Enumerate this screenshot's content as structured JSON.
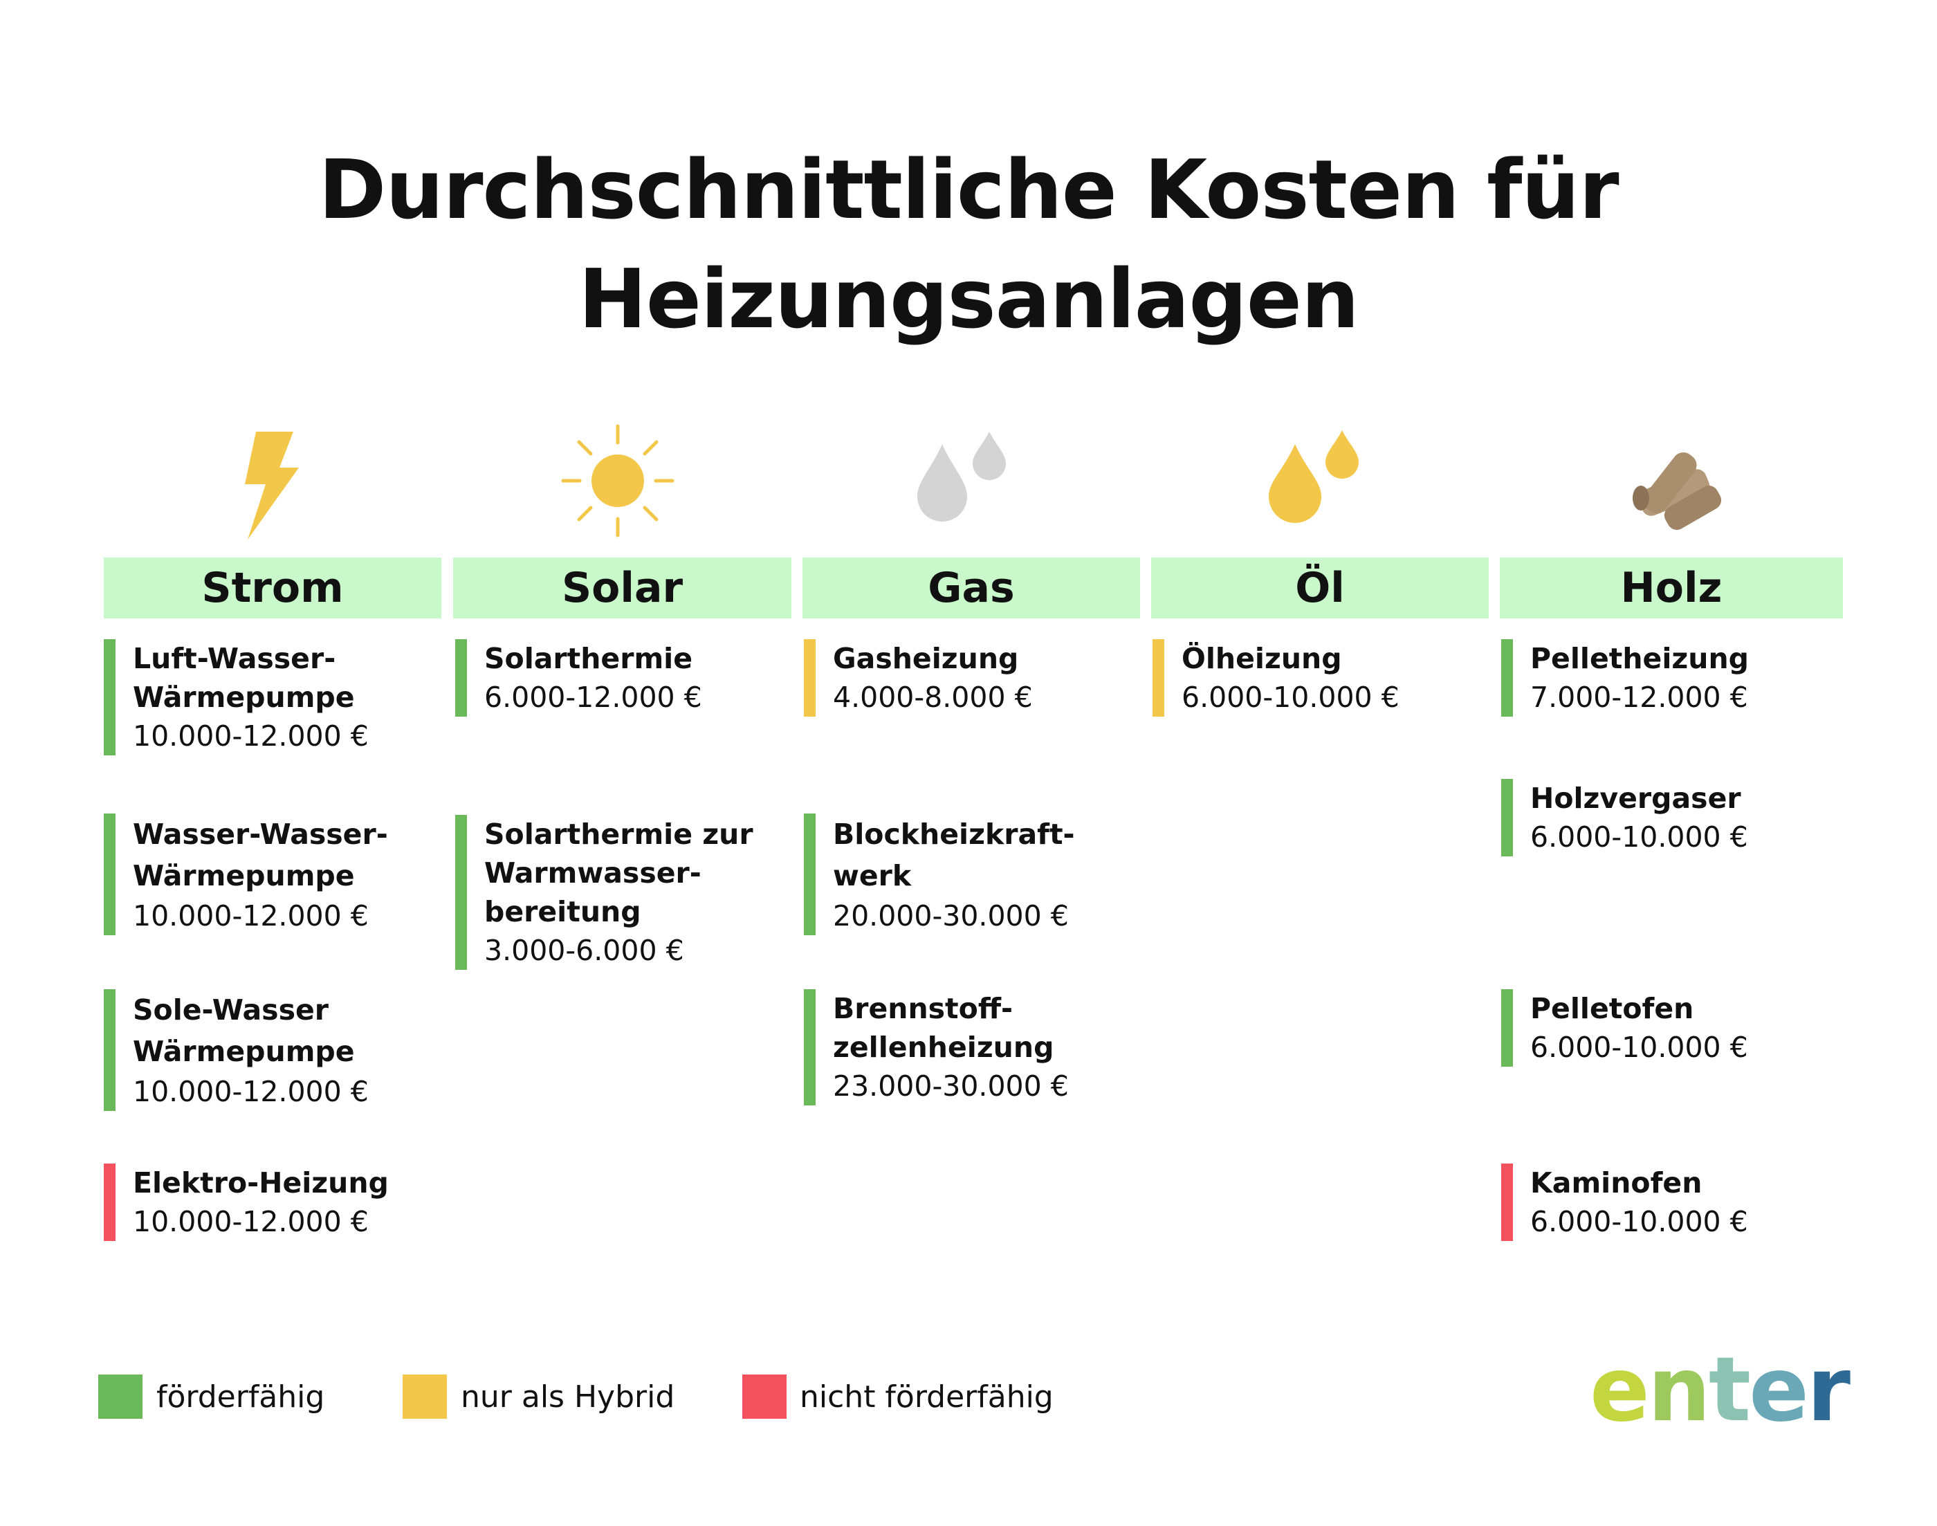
{
  "title": {
    "line1": "Durchschnittliche Kosten für",
    "line2": "Heizungsanlagen"
  },
  "colors": {
    "header_bg": "#c9f8cb",
    "green": "#6ab85a",
    "yellow": "#f3c84a",
    "red": "#f4515f"
  },
  "categories": [
    {
      "label": "Strom",
      "icon": "lightning-icon"
    },
    {
      "label": "Solar",
      "icon": "sun-icon"
    },
    {
      "label": "Gas",
      "icon": "gas-drops-icon"
    },
    {
      "label": "Öl",
      "icon": "oil-drops-icon"
    },
    {
      "label": "Holz",
      "icon": "wood-logs-icon"
    }
  ],
  "items": {
    "strom": [
      {
        "name": "Luft-Wasser-\nWärmepumpe",
        "price": "10.000-12.000 €",
        "status": "förderfähig"
      },
      {
        "name": "Wasser-Wasser-\nWärmepumpe",
        "price": "10.000-12.000 €",
        "status": "förderfähig"
      },
      {
        "name": "Sole-Wasser\nWärmepumpe",
        "price": "10.000-12.000 €",
        "status": "förderfähig"
      },
      {
        "name": "Elektro-Heizung",
        "price": "10.000-12.000 €",
        "status": "nicht förderfähig"
      }
    ],
    "solar": [
      {
        "name": "Solarthermie",
        "price": "6.000-12.000 €",
        "status": "förderfähig"
      },
      {
        "name": "Solarthermie zur\nWarmwasser-\nbereitung",
        "price": "3.000-6.000 €",
        "status": "förderfähig"
      }
    ],
    "gas": [
      {
        "name": "Gasheizung",
        "price": "4.000-8.000 €",
        "status": "nur als Hybrid"
      },
      {
        "name": "Blockheizkraft-\nwerk",
        "price": "20.000-30.000 €",
        "status": "förderfähig"
      },
      {
        "name": "Brennstoff-\nzellenheizung",
        "price": "23.000-30.000 €",
        "status": "förderfähig"
      }
    ],
    "oel": [
      {
        "name": "Ölheizung",
        "price": "6.000-10.000 €",
        "status": "nur als Hybrid"
      }
    ],
    "holz": [
      {
        "name": "Pelletheizung",
        "price": "7.000-12.000 €",
        "status": "förderfähig"
      },
      {
        "name": "Holzvergaser",
        "price": "6.000-10.000 €",
        "status": "förderfähig"
      },
      {
        "name": "Pelletofen",
        "price": "6.000-10.000 €",
        "status": "förderfähig"
      },
      {
        "name": "Kaminofen",
        "price": "6.000-10.000 €",
        "status": "nicht förderfähig"
      }
    ]
  },
  "legend": [
    {
      "label": "förderfähig",
      "color": "#6ab85a"
    },
    {
      "label": "nur als Hybrid",
      "color": "#f3c84a"
    },
    {
      "label": "nicht förderfähig",
      "color": "#f4515f"
    }
  ],
  "brand": {
    "l1": "e",
    "l2": "n",
    "l3": "t",
    "l4": "e",
    "l5": "r"
  }
}
